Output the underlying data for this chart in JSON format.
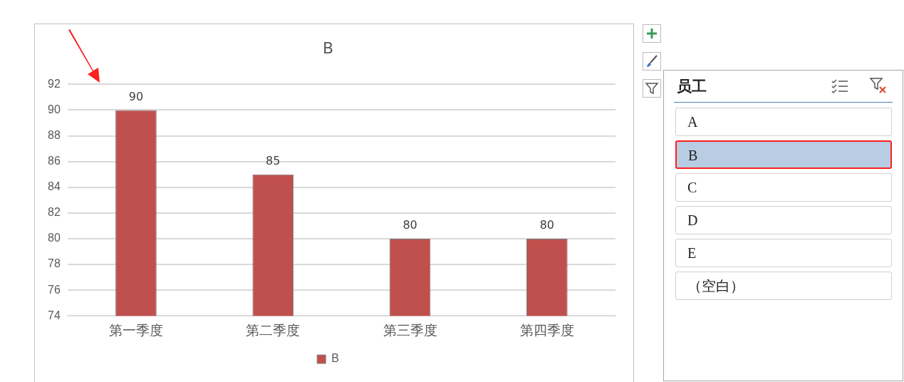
{
  "chart_data": [
    {
      "type": "bar",
      "title": "B",
      "categories": [
        "第一季度",
        "第二季度",
        "第三季度",
        "第四季度"
      ],
      "series": [
        {
          "name": "B",
          "color": "#c0504d",
          "values": [
            90,
            85,
            80,
            80
          ]
        }
      ],
      "ylim": [
        74,
        92
      ],
      "yticks": [
        74,
        76,
        78,
        80,
        82,
        84,
        86,
        88,
        90,
        92
      ],
      "grid": "y",
      "legend": "bottom",
      "data_labels": true
    },
    {
      "type": "other",
      "title": "员工",
      "categories": [
        "A",
        "B",
        "C",
        "D",
        "E",
        "（空白）"
      ]
    }
  ]
}
